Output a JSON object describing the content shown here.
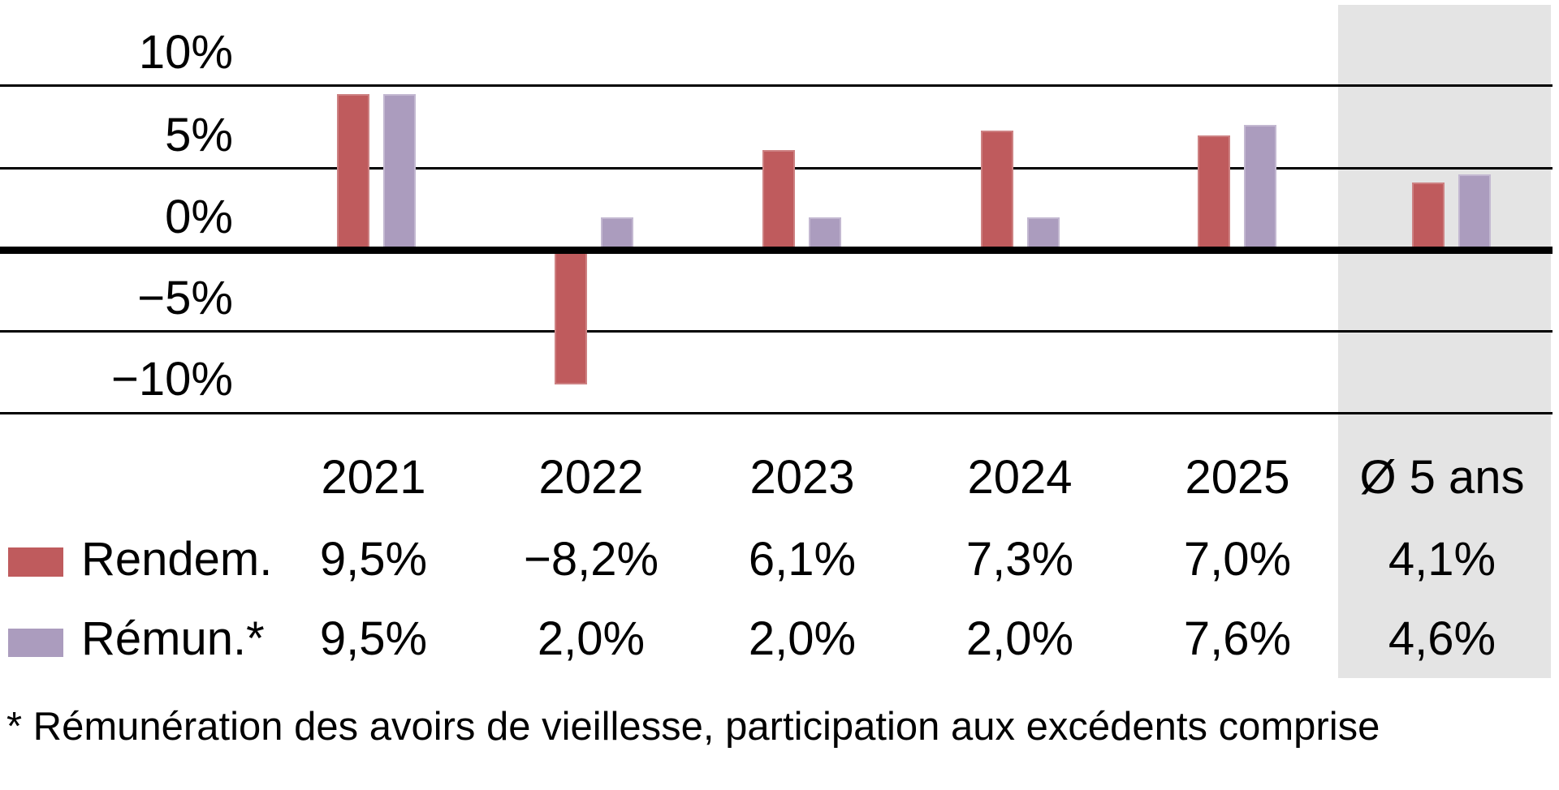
{
  "colors": {
    "rendement": "#bf5b5d",
    "remuneration": "#ab9cbe",
    "band": "#e4e4e4",
    "grid": "#000000"
  },
  "axis": {
    "tick_labels": [
      "10%",
      "5%",
      "0%",
      "−5%",
      "−10%"
    ]
  },
  "legend": {
    "rendement": "Rendem.",
    "remuneration": "Rémun.*"
  },
  "table": {
    "rendement_values": [
      "9,5%",
      "−8,2%",
      "6,1%",
      "7,3%",
      "7,0%",
      "4,1%"
    ],
    "remuneration_values": [
      "9,5%",
      "2,0%",
      "2,0%",
      "2,0%",
      "7,6%",
      "4,6%"
    ]
  },
  "footnote": "* Rémunération des avoirs de vieillesse, participation aux excédents comprise",
  "chart_data": {
    "type": "bar",
    "categories": [
      "2021",
      "2022",
      "2023",
      "2024",
      "2025",
      "Ø 5 ans"
    ],
    "series": [
      {
        "name": "Rendem.",
        "values": [
          9.5,
          -8.2,
          6.1,
          7.3,
          7.0,
          4.1
        ],
        "color": "#bf5b5d"
      },
      {
        "name": "Rémun.*",
        "values": [
          9.5,
          2.0,
          2.0,
          2.0,
          7.6,
          4.6
        ],
        "color": "#ab9cbe"
      }
    ],
    "title": "",
    "xlabel": "",
    "ylabel": "",
    "ylim": [
      -12,
      12
    ],
    "yticks": [
      10,
      5,
      0,
      -5,
      -10
    ],
    "grid": true,
    "legend_position": "bottom-left-table",
    "highlight_band_column": "Ø 5 ans",
    "value_format": "comma-decimal-percent"
  }
}
